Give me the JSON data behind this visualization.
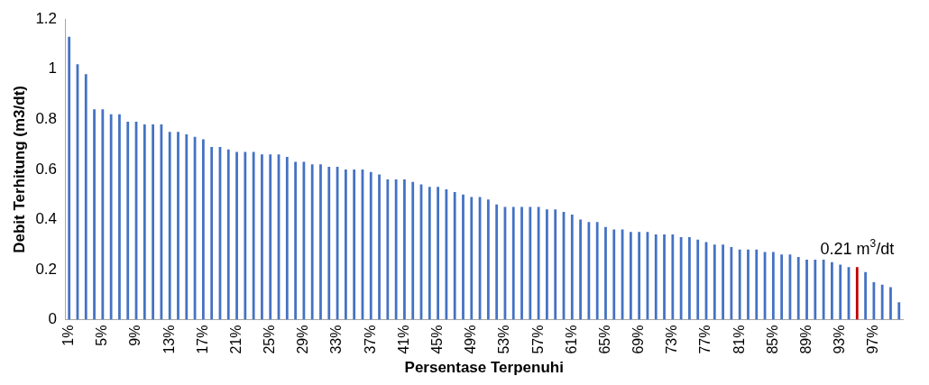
{
  "chart_data": {
    "type": "bar",
    "xlabel": "Persentase Terpenuhi",
    "ylabel": "Debit Terhitung (m3/dt)",
    "categories": [
      "1%",
      null,
      null,
      null,
      "5%",
      null,
      null,
      null,
      "9%",
      null,
      null,
      null,
      "13%",
      null,
      null,
      null,
      "17%",
      null,
      null,
      null,
      "21%",
      null,
      null,
      null,
      "25%",
      null,
      null,
      null,
      "29%",
      null,
      null,
      null,
      "33%",
      null,
      null,
      null,
      "37%",
      null,
      null,
      null,
      "41%",
      null,
      null,
      null,
      "45%",
      null,
      null,
      null,
      "49%",
      null,
      null,
      null,
      "53%",
      null,
      null,
      null,
      "57%",
      null,
      null,
      null,
      "61%",
      null,
      null,
      null,
      "65%",
      null,
      null,
      null,
      "69%",
      null,
      null,
      null,
      "73%",
      null,
      null,
      null,
      "77%",
      null,
      null,
      null,
      "81%",
      null,
      null,
      null,
      "85%",
      null,
      null,
      null,
      "89%",
      null,
      null,
      null,
      "93%",
      null,
      null,
      null,
      "97%",
      null,
      null,
      null
    ],
    "values": [
      1.13,
      1.02,
      0.98,
      0.84,
      0.84,
      0.82,
      0.82,
      0.79,
      0.79,
      0.78,
      0.78,
      0.78,
      0.75,
      0.75,
      0.74,
      0.73,
      0.72,
      0.69,
      0.69,
      0.68,
      0.67,
      0.67,
      0.67,
      0.66,
      0.66,
      0.66,
      0.65,
      0.63,
      0.63,
      0.62,
      0.62,
      0.61,
      0.61,
      0.6,
      0.6,
      0.6,
      0.59,
      0.58,
      0.56,
      0.56,
      0.56,
      0.55,
      0.54,
      0.53,
      0.53,
      0.52,
      0.51,
      0.5,
      0.49,
      0.49,
      0.48,
      0.46,
      0.45,
      0.45,
      0.45,
      0.45,
      0.45,
      0.44,
      0.44,
      0.43,
      0.42,
      0.4,
      0.39,
      0.39,
      0.37,
      0.36,
      0.36,
      0.35,
      0.35,
      0.35,
      0.34,
      0.34,
      0.34,
      0.33,
      0.33,
      0.32,
      0.31,
      0.3,
      0.3,
      0.29,
      0.28,
      0.28,
      0.28,
      0.27,
      0.27,
      0.26,
      0.26,
      0.25,
      0.24,
      0.24,
      0.24,
      0.23,
      0.22,
      0.21,
      0.21,
      0.19,
      0.15,
      0.14,
      0.13,
      0.07
    ],
    "colors": [
      "#4472c4",
      "#4472c4",
      "#4472c4",
      "#4472c4",
      "#4472c4",
      "#4472c4",
      "#4472c4",
      "#4472c4",
      "#4472c4",
      "#4472c4",
      "#4472c4",
      "#4472c4",
      "#4472c4",
      "#4472c4",
      "#4472c4",
      "#4472c4",
      "#4472c4",
      "#4472c4",
      "#4472c4",
      "#4472c4",
      "#4472c4",
      "#4472c4",
      "#4472c4",
      "#4472c4",
      "#4472c4",
      "#4472c4",
      "#4472c4",
      "#4472c4",
      "#4472c4",
      "#4472c4",
      "#4472c4",
      "#4472c4",
      "#4472c4",
      "#4472c4",
      "#4472c4",
      "#4472c4",
      "#4472c4",
      "#4472c4",
      "#4472c4",
      "#4472c4",
      "#4472c4",
      "#4472c4",
      "#4472c4",
      "#4472c4",
      "#4472c4",
      "#4472c4",
      "#4472c4",
      "#4472c4",
      "#4472c4",
      "#4472c4",
      "#4472c4",
      "#4472c4",
      "#4472c4",
      "#4472c4",
      "#4472c4",
      "#4472c4",
      "#4472c4",
      "#4472c4",
      "#4472c4",
      "#4472c4",
      "#4472c4",
      "#4472c4",
      "#4472c4",
      "#4472c4",
      "#4472c4",
      "#4472c4",
      "#4472c4",
      "#4472c4",
      "#4472c4",
      "#4472c4",
      "#4472c4",
      "#4472c4",
      "#4472c4",
      "#4472c4",
      "#4472c4",
      "#4472c4",
      "#4472c4",
      "#4472c4",
      "#4472c4",
      "#4472c4",
      "#4472c4",
      "#4472c4",
      "#4472c4",
      "#4472c4",
      "#4472c4",
      "#4472c4",
      "#4472c4",
      "#4472c4",
      "#4472c4",
      "#4472c4",
      "#4472c4",
      "#4472c4",
      "#4472c4",
      "#4472c4",
      "#c00000",
      "#4472c4",
      "#4472c4",
      "#4472c4",
      "#4472c4",
      "#4472c4"
    ],
    "ylim": [
      0,
      1.2
    ],
    "yticks": [
      0,
      0.2,
      0.4,
      0.6,
      0.8,
      1,
      1.2
    ],
    "grid": false,
    "legend": false,
    "annotations": [
      "0.21 m$^{3}$/dt"
    ]
  }
}
